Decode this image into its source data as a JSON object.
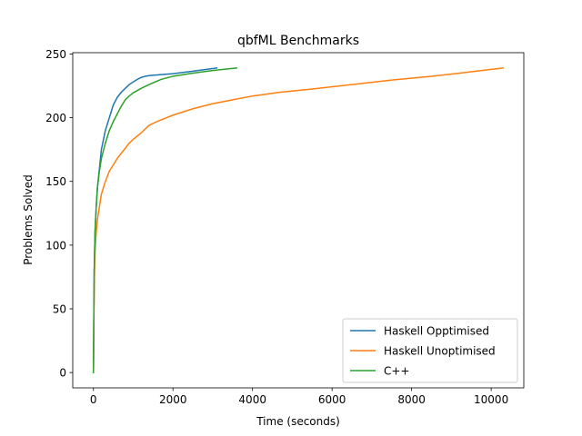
{
  "chart_data": {
    "type": "line",
    "title": "qbfML Benchmarks",
    "xlabel": "Time (seconds)",
    "ylabel": "Problems Solved",
    "xlim": [
      -520,
      10820
    ],
    "ylim": [
      -12,
      251
    ],
    "xticks": [
      0,
      2000,
      4000,
      6000,
      8000,
      10000
    ],
    "yticks": [
      0,
      50,
      100,
      150,
      200,
      250
    ],
    "grid": false,
    "legend_position": "lower-right",
    "series": [
      {
        "name": "Haskell Opptimised",
        "color": "#1f77b4",
        "points": [
          [
            0,
            0
          ],
          [
            5,
            20
          ],
          [
            10,
            40
          ],
          [
            20,
            80
          ],
          [
            40,
            110
          ],
          [
            70,
            130
          ],
          [
            100,
            145
          ],
          [
            150,
            160
          ],
          [
            200,
            175
          ],
          [
            300,
            190
          ],
          [
            400,
            200
          ],
          [
            500,
            210
          ],
          [
            600,
            216
          ],
          [
            700,
            220
          ],
          [
            800,
            223
          ],
          [
            900,
            226
          ],
          [
            1000,
            228
          ],
          [
            1100,
            230
          ],
          [
            1200,
            231.5
          ],
          [
            1300,
            232.5
          ],
          [
            1400,
            233
          ],
          [
            1600,
            233.5
          ],
          [
            2000,
            234.5
          ],
          [
            2500,
            236.5
          ],
          [
            3100,
            239
          ]
        ]
      },
      {
        "name": "Haskell Unoptimised",
        "color": "#ff7f0e",
        "points": [
          [
            0,
            0
          ],
          [
            10,
            40
          ],
          [
            20,
            70
          ],
          [
            40,
            95
          ],
          [
            70,
            110
          ],
          [
            100,
            120
          ],
          [
            150,
            130
          ],
          [
            200,
            140
          ],
          [
            300,
            150
          ],
          [
            400,
            158
          ],
          [
            500,
            163
          ],
          [
            600,
            168
          ],
          [
            700,
            172
          ],
          [
            800,
            176
          ],
          [
            900,
            180
          ],
          [
            1000,
            183
          ],
          [
            1200,
            188
          ],
          [
            1400,
            194
          ],
          [
            1600,
            197
          ],
          [
            2000,
            202
          ],
          [
            2500,
            207
          ],
          [
            3000,
            211
          ],
          [
            3500,
            214
          ],
          [
            4000,
            217
          ],
          [
            4700,
            220
          ],
          [
            5500,
            222.5
          ],
          [
            6500,
            226
          ],
          [
            7500,
            229.5
          ],
          [
            8500,
            232.5
          ],
          [
            9500,
            236
          ],
          [
            10300,
            239
          ]
        ]
      },
      {
        "name": "C++",
        "color": "#2ca02c",
        "points": [
          [
            0,
            0
          ],
          [
            5,
            20
          ],
          [
            10,
            40
          ],
          [
            20,
            80
          ],
          [
            40,
            110
          ],
          [
            70,
            130
          ],
          [
            100,
            145
          ],
          [
            150,
            158
          ],
          [
            200,
            168
          ],
          [
            300,
            180
          ],
          [
            400,
            190
          ],
          [
            500,
            197
          ],
          [
            600,
            203
          ],
          [
            700,
            209
          ],
          [
            800,
            214
          ],
          [
            900,
            217
          ],
          [
            1000,
            219.5
          ],
          [
            1200,
            223
          ],
          [
            1400,
            226
          ],
          [
            1700,
            230
          ],
          [
            2000,
            232.5
          ],
          [
            2500,
            235
          ],
          [
            3000,
            237
          ],
          [
            3600,
            239
          ]
        ]
      }
    ]
  }
}
